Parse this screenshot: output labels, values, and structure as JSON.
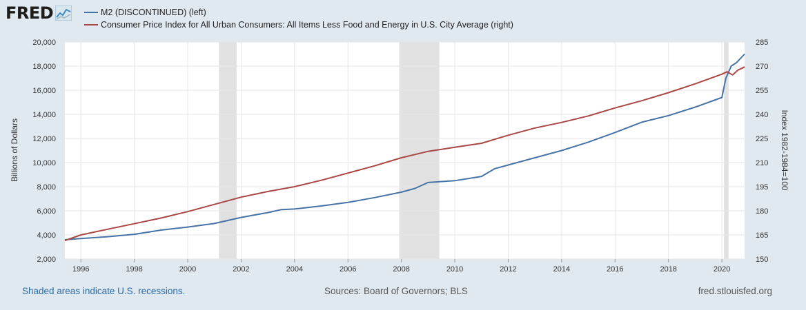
{
  "header": {
    "logo_text": "FRED",
    "logo_icon": "line-chart-icon"
  },
  "legend": [
    {
      "label": "M2 (DISCONTINUED) (left)",
      "color": "#4572a7"
    },
    {
      "label": "Consumer Price Index for All Urban Consumers: All Items Less Food and Energy in U.S. City Average (right)",
      "color": "#aa4643"
    }
  ],
  "footer": {
    "recession_note": "Shaded areas indicate U.S. recessions.",
    "sources": "Sources: Board of Governors; BLS",
    "site": "fred.stlouisfed.org"
  },
  "chart_data": {
    "type": "line",
    "x_label": "",
    "y_left_label": "Billions of Dollars",
    "y_right_label": "Index 1982-1984=100",
    "x_range": [
      1995.4,
      2020.85
    ],
    "y_left_range": [
      2000,
      20000
    ],
    "y_right_range": [
      150,
      285
    ],
    "x_ticks": [
      "1996",
      "1998",
      "2000",
      "2002",
      "2004",
      "2006",
      "2008",
      "2010",
      "2012",
      "2014",
      "2016",
      "2018",
      "2020"
    ],
    "y_left_ticks": [
      "2,000",
      "4,000",
      "6,000",
      "8,000",
      "10,000",
      "12,000",
      "14,000",
      "16,000",
      "18,000",
      "20,000"
    ],
    "y_right_ticks": [
      "150",
      "165",
      "180",
      "195",
      "210",
      "225",
      "240",
      "255",
      "270",
      "285"
    ],
    "grid": true,
    "recessions": [
      [
        2001.17,
        2001.83
      ],
      [
        2007.92,
        2009.42
      ],
      [
        2020.08,
        2020.25
      ]
    ],
    "series": [
      {
        "name": "M2 (DISCONTINUED) (left)",
        "axis": "left",
        "color": "#4572a7",
        "x": [
          1995.4,
          1996,
          1997,
          1998,
          1999,
          2000,
          2001,
          2002,
          2003,
          2003.5,
          2004,
          2005,
          2006,
          2007,
          2008,
          2008.5,
          2009,
          2010,
          2011,
          2011.5,
          2012,
          2013,
          2014,
          2015,
          2016,
          2017,
          2018,
          2019,
          2020,
          2020.15,
          2020.35,
          2020.55,
          2020.85
        ],
        "y": [
          3600,
          3700,
          3850,
          4050,
          4400,
          4650,
          4950,
          5450,
          5850,
          6100,
          6150,
          6400,
          6700,
          7100,
          7550,
          7850,
          8350,
          8500,
          8850,
          9500,
          9800,
          10400,
          11000,
          11700,
          12500,
          13350,
          13900,
          14600,
          15400,
          17000,
          18000,
          18300,
          19000
        ]
      },
      {
        "name": "Consumer Price Index for All Urban Consumers: All Items Less Food and Energy in U.S. City Average (right)",
        "axis": "right",
        "color": "#aa4643",
        "x": [
          1995.4,
          1996,
          1997,
          1998,
          1999,
          2000,
          2001,
          2002,
          2003,
          2004,
          2005,
          2006,
          2007,
          2008,
          2009,
          2010,
          2011,
          2012,
          2013,
          2014,
          2015,
          2016,
          2017,
          2018,
          2019,
          2020,
          2020.2,
          2020.4,
          2020.6,
          2020.85
        ],
        "y": [
          161.5,
          165,
          168.5,
          172,
          175.5,
          179.5,
          184,
          188.5,
          192,
          195,
          199,
          203.5,
          208,
          213,
          217,
          219.5,
          222,
          227,
          231.5,
          235,
          239,
          244,
          248.5,
          253.5,
          259,
          265,
          266.5,
          264.5,
          267.5,
          269.5
        ]
      }
    ]
  }
}
